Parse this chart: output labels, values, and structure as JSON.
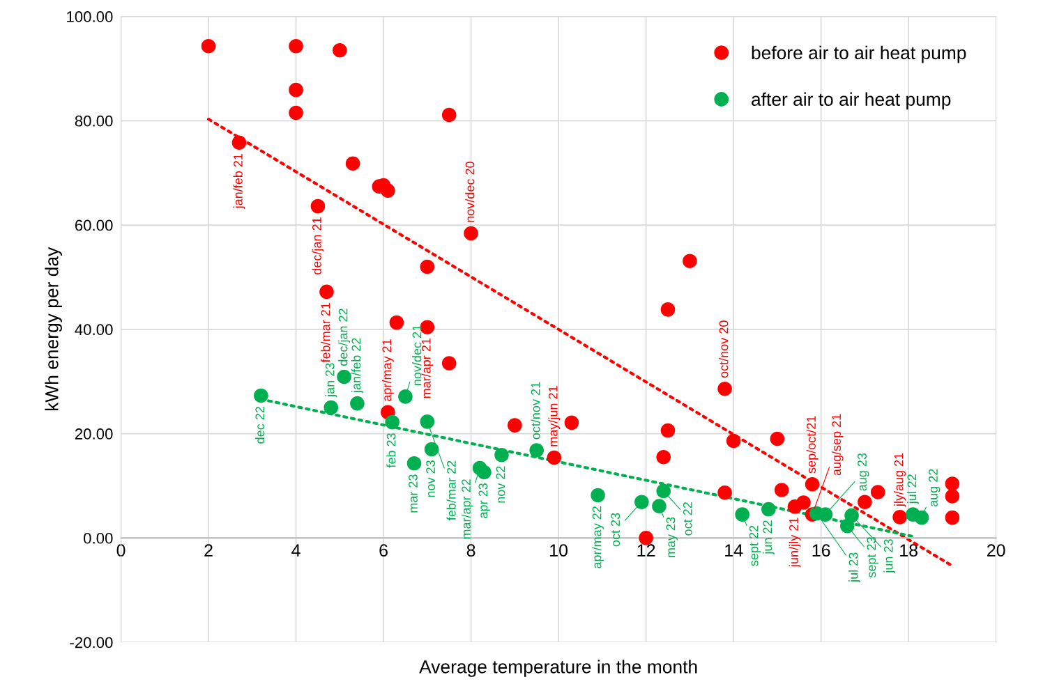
{
  "chart_data": {
    "type": "scatter",
    "xlabel": "Average temperature in the month",
    "ylabel": "kWh energy per day",
    "xlim": [
      0,
      20
    ],
    "xticks": [
      0,
      2,
      4,
      6,
      8,
      10,
      12,
      14,
      16,
      18,
      20
    ],
    "ylim": [
      -20,
      100
    ],
    "yticks": [
      {
        "value": -20,
        "label": "-20.00"
      },
      {
        "value": 0,
        "label": "0.00"
      },
      {
        "value": 20,
        "label": "20.00"
      },
      {
        "value": 40,
        "label": "40.00"
      },
      {
        "value": 60,
        "label": "60.00"
      },
      {
        "value": 80,
        "label": "80.00"
      },
      {
        "value": 100,
        "label": "100.00"
      }
    ],
    "grid": true,
    "legend": "top right",
    "marker": "circle",
    "series": [
      {
        "name": "before air to air heat pump",
        "color": "#ff0000",
        "x": [
          2.0,
          2.7,
          4.0,
          4.0,
          4.0,
          5.0,
          4.5,
          4.7,
          5.3,
          5.9,
          6.0,
          6.1,
          7.5,
          8.0,
          7.0,
          6.3,
          7.0,
          7.5,
          6.1,
          9.0,
          10.3,
          9.9,
          13.0,
          12.5,
          12.5,
          12.4,
          12.0,
          13.8,
          14.0,
          13.8,
          15.0,
          15.1,
          15.4,
          15.6,
          15.8,
          15.8,
          17.0,
          17.3,
          17.8,
          19.0,
          19.0,
          19.0
        ],
        "values": [
          94.3,
          75.8,
          94.3,
          85.9,
          81.5,
          93.5,
          63.6,
          47.2,
          71.8,
          67.4,
          67.6,
          66.6,
          81.1,
          58.4,
          52.0,
          41.3,
          40.4,
          33.5,
          24.1,
          21.6,
          22.1,
          15.4,
          53.1,
          43.8,
          20.6,
          15.5,
          0.0,
          28.6,
          18.6,
          8.7,
          19.0,
          9.2,
          6.0,
          6.8,
          10.3,
          4.5,
          6.9,
          8.8,
          4.0,
          10.4,
          8.0,
          3.9
        ]
      },
      {
        "name": "after air to air heat pump",
        "color": "#00b050",
        "x": [
          3.2,
          4.8,
          5.1,
          5.4,
          6.5,
          6.2,
          7.0,
          6.7,
          7.1,
          8.2,
          8.3,
          8.7,
          9.5,
          10.9,
          11.9,
          12.3,
          12.4,
          14.2,
          14.8,
          15.9,
          16.1,
          16.6,
          16.7,
          18.1,
          18.3
        ],
        "values": [
          27.3,
          25.0,
          30.9,
          25.8,
          27.1,
          22.2,
          22.3,
          14.3,
          17.0,
          13.4,
          12.6,
          15.9,
          16.8,
          8.2,
          6.9,
          6.1,
          9.0,
          4.5,
          5.5,
          4.7,
          4.5,
          2.3,
          4.3,
          4.5,
          3.9
        ]
      },
      {
        "type": "line",
        "color": "#ff0000",
        "line_style": "dotted",
        "marker": "none",
        "x": [
          2.0,
          18.95
        ],
        "values": [
          80.3,
          -5.1
        ]
      },
      {
        "type": "line",
        "color": "#00b050",
        "line_style": "dotted",
        "marker": "none",
        "x": [
          3.2,
          18.1
        ],
        "values": [
          26.6,
          0.3
        ]
      }
    ],
    "annotations": [
      {
        "text": "jan/feb 21",
        "x": 2.7,
        "y": 75.8
      },
      {
        "text": "dec/jan 21",
        "x": 4.5,
        "y": 63.6
      },
      {
        "text": "feb/mar 21",
        "x": 4.7,
        "y": 47.2
      },
      {
        "text": "nov/dec 20",
        "x": 8.0,
        "y": 58.4
      },
      {
        "text": "mar/apr 21",
        "x": 7.0,
        "y": 40.4
      },
      {
        "text": "apr/may 21",
        "x": 6.1,
        "y": 24.1
      },
      {
        "text": "may/jun 21",
        "x": 9.9,
        "y": 15.4
      },
      {
        "text": "oct/nov 20",
        "x": 13.8,
        "y": 28.6
      },
      {
        "text": "jun/jly 21",
        "x": 15.4,
        "y": 6.0
      },
      {
        "text": "aug/sep 21",
        "x": 15.8,
        "y": 4.5
      },
      {
        "text": "sep/oct/21",
        "x": 15.8,
        "y": 10.3
      },
      {
        "text": "jly/aug 21",
        "x": 17.8,
        "y": 4.0
      },
      {
        "text": "dec 22",
        "x": 3.2,
        "y": 27.3
      },
      {
        "text": "jan 23",
        "x": 4.8,
        "y": 25.0
      },
      {
        "text": "dec/jan 22",
        "x": 5.1,
        "y": 30.9
      },
      {
        "text": "jan/feb 22",
        "x": 5.4,
        "y": 25.8
      },
      {
        "text": "feb 23",
        "x": 6.2,
        "y": 22.2
      },
      {
        "text": "nov/dec 21",
        "x": 6.5,
        "y": 27.1
      },
      {
        "text": "mar 23",
        "x": 6.7,
        "y": 14.3
      },
      {
        "text": "feb/mar 22",
        "x": 7.0,
        "y": 22.3
      },
      {
        "text": "nov 23",
        "x": 7.1,
        "y": 17.0
      },
      {
        "text": "mar/apr 22",
        "x": 8.2,
        "y": 13.4
      },
      {
        "text": "apr 23",
        "x": 8.3,
        "y": 12.6
      },
      {
        "text": "nov 22",
        "x": 8.7,
        "y": 15.9
      },
      {
        "text": "oct/nov 21",
        "x": 9.5,
        "y": 16.8
      },
      {
        "text": "apr/may 22",
        "x": 10.9,
        "y": 8.2
      },
      {
        "text": "oct 23",
        "x": 11.9,
        "y": 6.9
      },
      {
        "text": "may 23",
        "x": 12.3,
        "y": 6.1
      },
      {
        "text": "oct 22",
        "x": 12.4,
        "y": 9.0
      },
      {
        "text": "sept 22",
        "x": 14.2,
        "y": 4.5
      },
      {
        "text": "jun 22",
        "x": 14.8,
        "y": 5.5
      },
      {
        "text": "jul 23",
        "x": 15.9,
        "y": 4.7
      },
      {
        "text": "aug 23",
        "x": 16.1,
        "y": 4.5
      },
      {
        "text": "sept 23",
        "x": 16.6,
        "y": 2.3
      },
      {
        "text": "jun 23",
        "x": 16.7,
        "y": 4.3
      },
      {
        "text": "jul 22",
        "x": 18.1,
        "y": 4.5
      },
      {
        "text": "aug 22",
        "x": 18.3,
        "y": 3.9
      }
    ]
  }
}
